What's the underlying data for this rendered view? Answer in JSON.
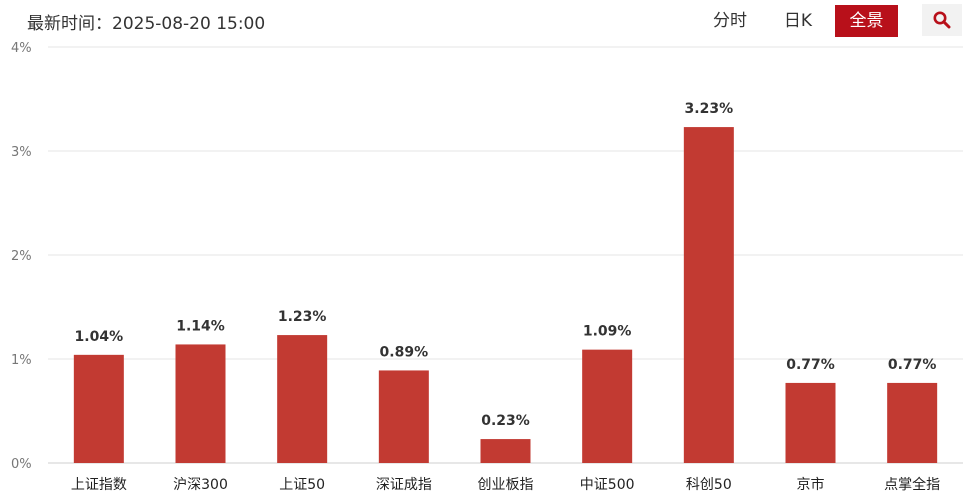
{
  "header": {
    "update_time": "最新时间：2025-08-20 15:00",
    "tabs": [
      {
        "label": "分时",
        "active": false
      },
      {
        "label": "日K",
        "active": false
      },
      {
        "label": "全景",
        "active": true
      }
    ],
    "search_icon": "search-icon"
  },
  "colors": {
    "bar": "#c23a32",
    "active_tab": "#b8101a",
    "gridline": "#e6e6e6"
  },
  "chart_data": {
    "type": "bar",
    "categories": [
      "上证指数",
      "沪深300",
      "上证50",
      "深证成指",
      "创业板指",
      "中证500",
      "科创50",
      "京市",
      "点掌全指"
    ],
    "values": [
      1.04,
      1.14,
      1.23,
      0.89,
      0.23,
      1.09,
      3.23,
      0.77,
      0.77
    ],
    "value_labels": [
      "1.04%",
      "1.14%",
      "1.23%",
      "0.89%",
      "0.23%",
      "1.09%",
      "3.23%",
      "0.77%",
      "0.77%"
    ],
    "y_ticks": [
      0,
      1,
      2,
      3,
      4
    ],
    "y_tick_labels": [
      "0%",
      "1%",
      "2%",
      "3%",
      "4%"
    ],
    "ylim": [
      0,
      4
    ],
    "grid": true
  }
}
